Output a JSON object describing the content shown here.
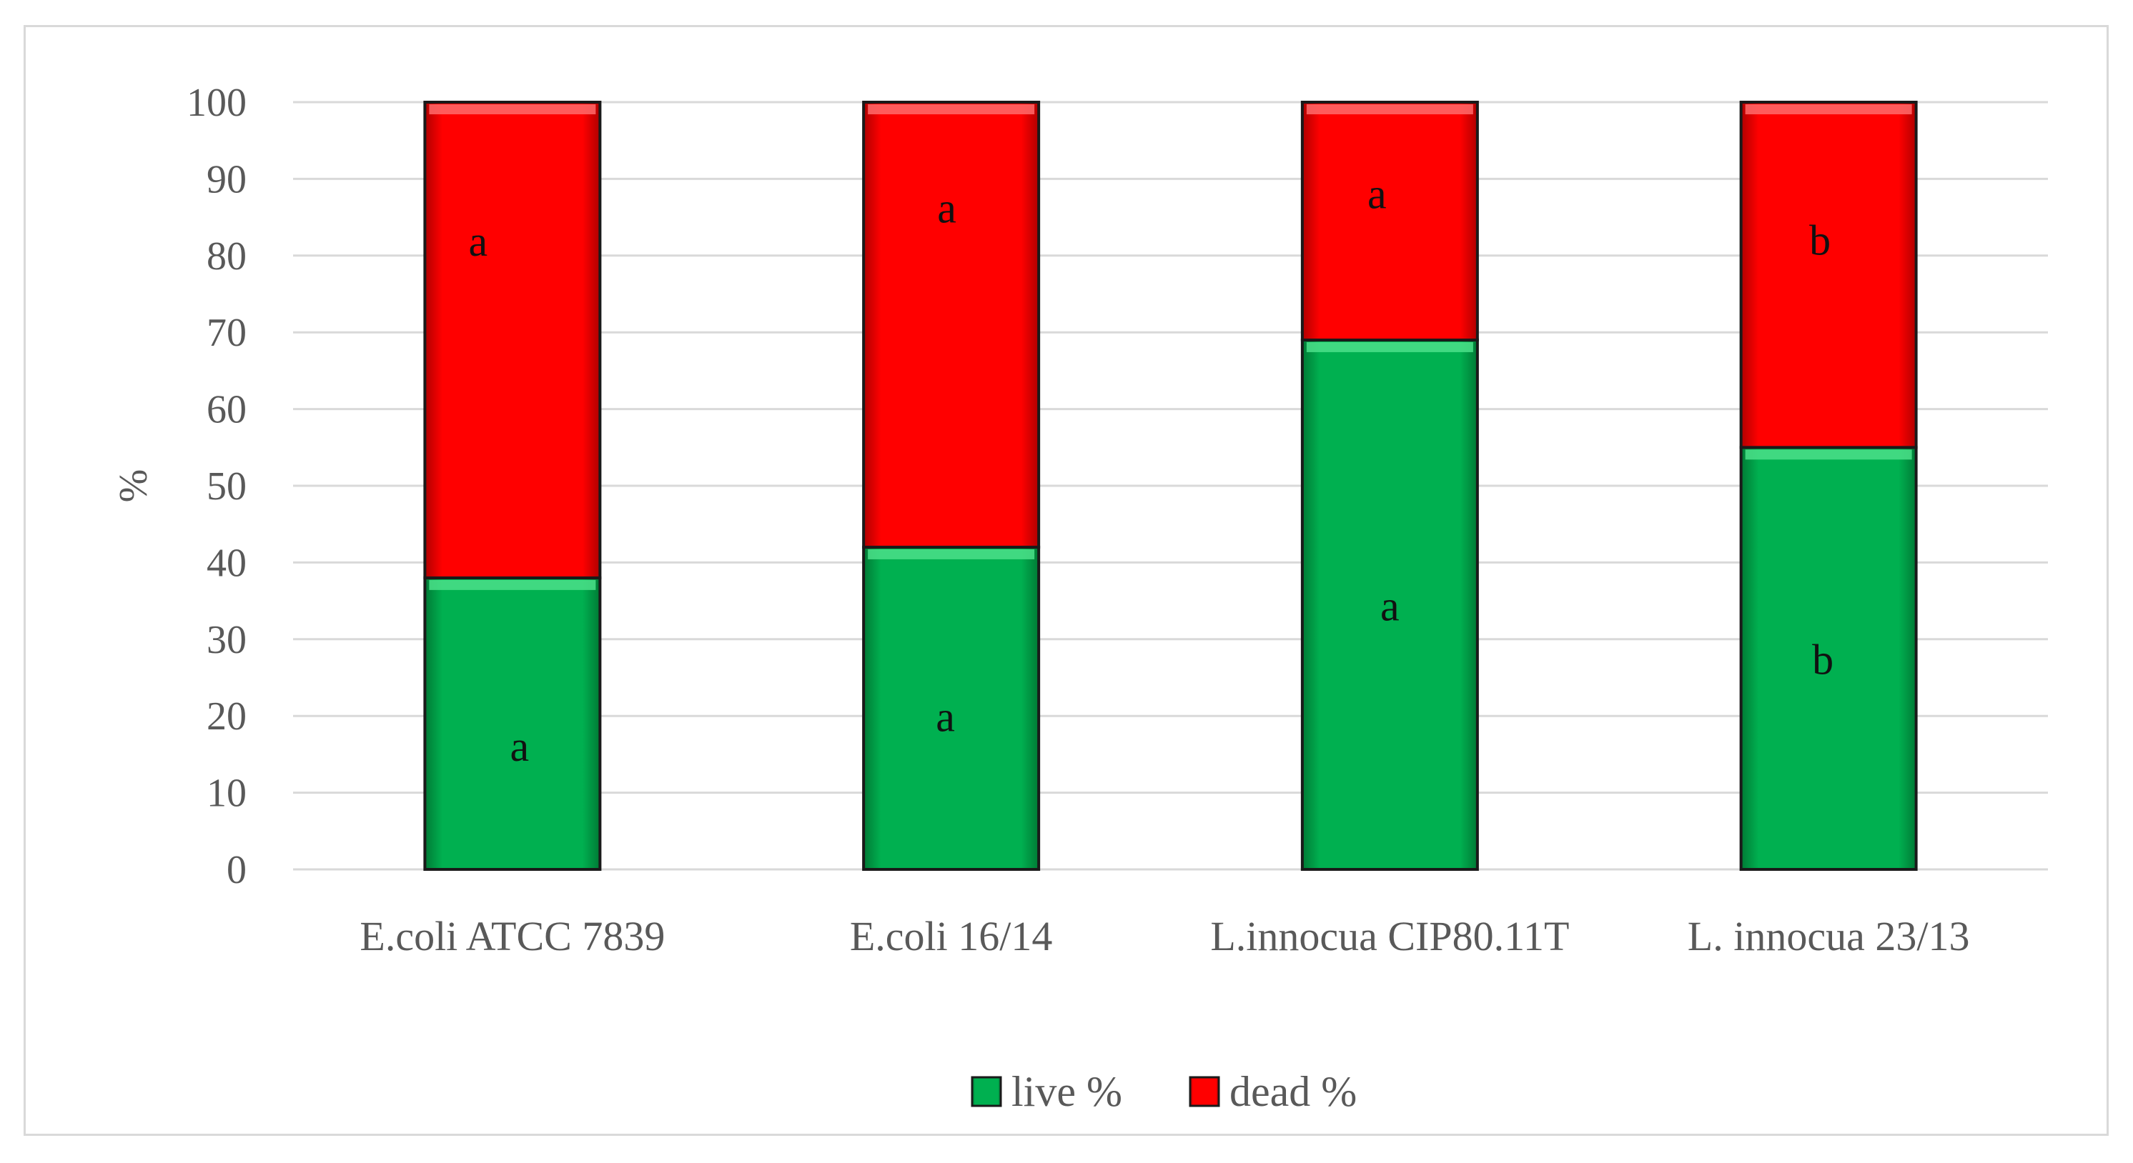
{
  "chart_data": {
    "type": "bar",
    "stacked": true,
    "title": "",
    "xlabel": "",
    "ylabel": "%",
    "ylim": [
      0,
      100
    ],
    "yticks": [
      0,
      10,
      20,
      30,
      40,
      50,
      60,
      70,
      80,
      90,
      100
    ],
    "grid": true,
    "legend_position": "bottom",
    "categories": [
      "E.coli ATCC 7839",
      "E.coli 16/14",
      "L.innocua CIP80.11T",
      "L. innocua 23/13"
    ],
    "series": [
      {
        "name": "live %",
        "color": "#00b050",
        "values": [
          38,
          42,
          69,
          55
        ],
        "annotations": [
          "a",
          "a",
          "a",
          "b"
        ]
      },
      {
        "name": "dead %",
        "color": "#ff0000",
        "values": [
          62,
          58,
          31,
          45
        ],
        "annotations": [
          "a",
          "a",
          "a",
          "b"
        ]
      }
    ]
  }
}
